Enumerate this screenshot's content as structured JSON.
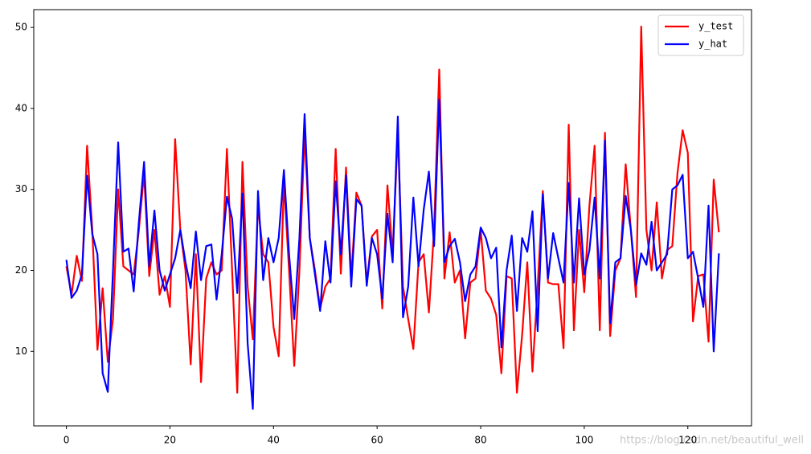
{
  "chart_data": {
    "type": "line",
    "x": [
      0,
      1,
      2,
      3,
      4,
      5,
      6,
      7,
      8,
      9,
      10,
      11,
      12,
      13,
      14,
      15,
      16,
      17,
      18,
      19,
      20,
      21,
      22,
      23,
      24,
      25,
      26,
      27,
      28,
      29,
      30,
      31,
      32,
      33,
      34,
      35,
      36,
      37,
      38,
      39,
      40,
      41,
      42,
      43,
      44,
      45,
      46,
      47,
      48,
      49,
      50,
      51,
      52,
      53,
      54,
      55,
      56,
      57,
      58,
      59,
      60,
      61,
      62,
      63,
      64,
      65,
      66,
      67,
      68,
      69,
      70,
      71,
      72,
      73,
      74,
      75,
      76,
      77,
      78,
      79,
      80,
      81,
      82,
      83,
      84,
      85,
      86,
      87,
      88,
      89,
      90,
      91,
      92,
      93,
      94,
      95,
      96,
      97,
      98,
      99,
      100,
      101,
      102,
      103,
      104,
      105,
      106,
      107,
      108,
      109,
      110,
      111,
      112,
      113,
      114,
      115,
      116,
      117,
      118,
      119,
      120,
      121,
      122,
      123,
      124,
      125,
      126
    ],
    "series": [
      {
        "name": "y_test",
        "color": "#ff0000",
        "values": [
          20.5,
          17,
          21.8,
          18.7,
          35.4,
          25,
          10.2,
          17.8,
          8.7,
          14,
          30,
          20.5,
          20,
          19.5,
          25,
          32,
          19.3,
          25,
          17,
          19.3,
          15.5,
          36.2,
          25,
          20,
          8.4,
          22,
          6.2,
          19,
          21,
          19.5,
          20,
          35,
          20,
          4.9,
          33.4,
          18,
          11.5,
          28,
          22,
          21,
          13,
          9.4,
          31,
          20,
          8.2,
          20,
          37,
          24,
          20,
          15.3,
          18,
          19,
          35,
          19.6,
          32.7,
          19,
          29.6,
          28,
          18.5,
          24.2,
          25,
          15.3,
          30.5,
          22,
          37,
          18,
          14,
          10.3,
          21,
          22,
          14.8,
          25,
          44.8,
          19,
          24.7,
          18.5,
          20,
          11.6,
          18.5,
          19,
          25,
          17.5,
          16.5,
          14.5,
          7.3,
          19.3,
          19,
          4.9,
          12,
          21,
          7.5,
          18,
          29.8,
          18.5,
          18.3,
          18.3,
          10.4,
          38,
          12.6,
          25,
          17.3,
          28,
          35.4,
          12.6,
          37,
          11.9,
          20,
          21.5,
          33.1,
          25,
          16.7,
          50.1,
          25,
          20,
          28.4,
          19,
          22.5,
          23,
          32,
          37.3,
          34.5,
          13.7,
          19.3,
          19.5,
          11.2,
          31.2,
          24.7
        ]
      },
      {
        "name": "y_hat",
        "color": "#0000ff",
        "values": [
          21.3,
          16.6,
          17.5,
          19.5,
          31.7,
          24.5,
          22,
          7.3,
          5,
          20,
          35.8,
          22.3,
          22.7,
          17.4,
          26,
          33.4,
          20.5,
          27.4,
          20,
          17.5,
          19.5,
          21.5,
          25,
          21,
          17.8,
          24.8,
          18.8,
          23,
          23.2,
          16.4,
          22,
          29.1,
          26.4,
          17.2,
          29.5,
          11,
          2.9,
          29.8,
          18.8,
          24,
          21,
          24,
          32.4,
          22,
          14,
          24,
          39.3,
          24,
          19.5,
          15,
          23.6,
          18.5,
          31,
          22,
          31.7,
          18,
          28.8,
          28,
          18.1,
          24,
          22,
          16.5,
          27,
          21,
          39,
          14.2,
          18,
          29,
          20.5,
          27.5,
          32.2,
          23,
          41.1,
          21,
          23,
          23.9,
          21,
          16.2,
          19.5,
          20.5,
          25.3,
          24,
          21.5,
          22.8,
          10.5,
          20,
          24.3,
          15,
          24,
          22.3,
          27.3,
          12.5,
          29.4,
          19,
          24.6,
          21.5,
          18.5,
          30.8,
          18.5,
          28.9,
          19.5,
          22.5,
          29,
          19,
          36,
          13.5,
          21,
          21.5,
          29.2,
          25,
          18.2,
          22.1,
          20.7,
          26,
          20,
          21,
          22,
          30,
          30.5,
          31.8,
          21.5,
          22.3,
          19,
          15.5,
          28,
          10,
          22.1
        ]
      }
    ],
    "xlim": [
      -6.3,
      132.3
    ],
    "ylim": [
      0.8,
      52.2
    ],
    "xticks": [
      0,
      20,
      40,
      60,
      80,
      100,
      120
    ],
    "yticks": [
      10,
      20,
      30,
      40,
      50
    ],
    "legend": "upper right",
    "grid": false
  },
  "watermark": "https://blog.csdn.net/beautiful_well"
}
